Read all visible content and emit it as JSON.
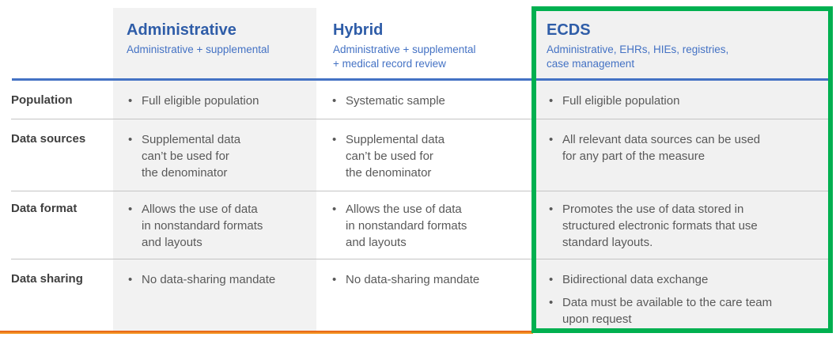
{
  "bullet": "•",
  "colors": {
    "accent_blue_title": "#2F5DA8",
    "accent_blue_subtitle": "#4472C4",
    "header_rule_blue": "#4472C4",
    "highlight_green": "#00B050",
    "bottom_line_orange": "#ED7D31",
    "column_bg_gray": "#F2F2F2",
    "label_text": "#3F3F3F",
    "body_text": "#595959"
  },
  "table": {
    "columns": [
      {
        "title": "Administrative",
        "subtitle_lines": [
          "Administrative + supplemental"
        ],
        "highlighted": false
      },
      {
        "title": "Hybrid",
        "subtitle_lines": [
          "Administrative + supplemental",
          "+ medical record review"
        ],
        "highlighted": false
      },
      {
        "title": "ECDS",
        "subtitle_lines": [
          "Administrative, EHRs, HIEs, registries,",
          "case management"
        ],
        "highlighted": true
      }
    ],
    "rows": [
      {
        "label": "Population",
        "cells": [
          {
            "bullets": [
              [
                "Full eligible population"
              ]
            ]
          },
          {
            "bullets": [
              [
                "Systematic sample"
              ]
            ]
          },
          {
            "bullets": [
              [
                "Full eligible population"
              ]
            ]
          }
        ]
      },
      {
        "label": "Data sources",
        "cells": [
          {
            "bullets": [
              [
                "Supplemental data",
                "can’t be used for",
                "the denominator"
              ]
            ]
          },
          {
            "bullets": [
              [
                "Supplemental data",
                "can’t be used for",
                "the denominator"
              ]
            ]
          },
          {
            "bullets": [
              [
                "All relevant data sources can be used",
                "for any part of the measure"
              ]
            ]
          }
        ]
      },
      {
        "label": "Data format",
        "cells": [
          {
            "bullets": [
              [
                "Allows the use of data",
                "in nonstandard formats",
                "and layouts"
              ]
            ]
          },
          {
            "bullets": [
              [
                "Allows the use of data",
                "in nonstandard formats",
                "and layouts"
              ]
            ]
          },
          {
            "bullets": [
              [
                "Promotes the use of data stored in",
                "structured electronic formats that use",
                "standard layouts."
              ]
            ]
          }
        ]
      },
      {
        "label": "Data sharing",
        "cells": [
          {
            "bullets": [
              [
                "No data-sharing mandate"
              ]
            ]
          },
          {
            "bullets": [
              [
                "No data-sharing mandate"
              ]
            ]
          },
          {
            "bullets": [
              [
                "Bidirectional data exchange"
              ],
              [
                "Data must be available to the care team",
                "upon request"
              ]
            ]
          }
        ]
      }
    ]
  }
}
